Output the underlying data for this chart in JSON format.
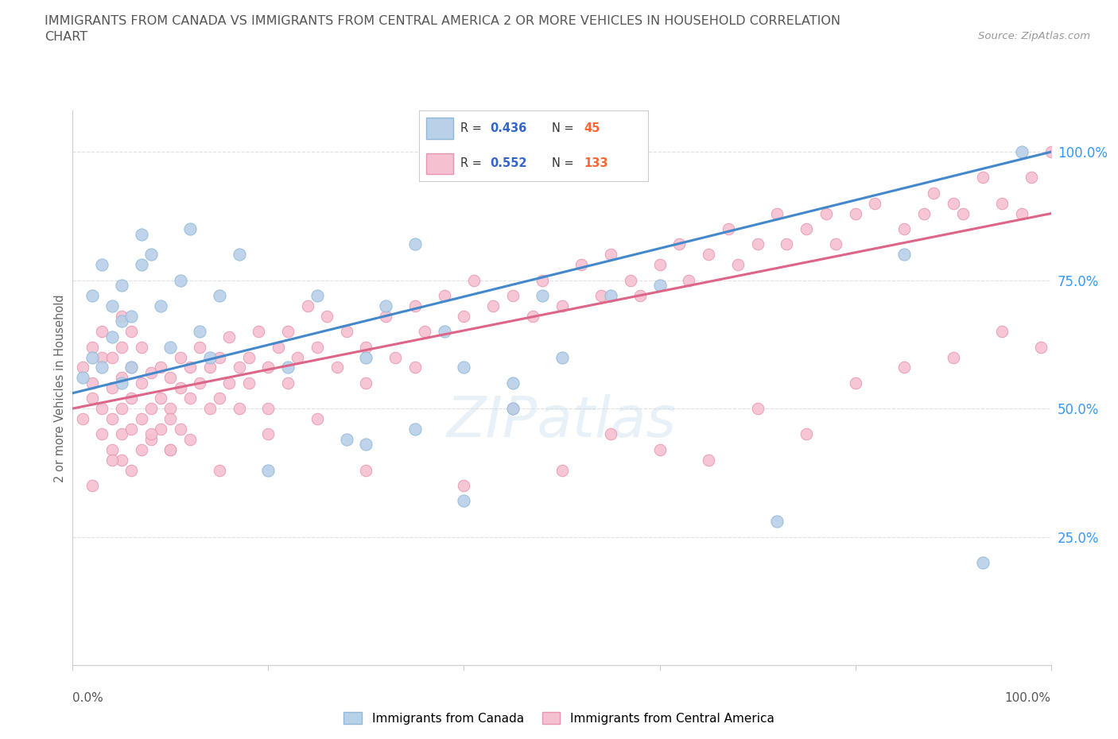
{
  "title_line1": "IMMIGRANTS FROM CANADA VS IMMIGRANTS FROM CENTRAL AMERICA 2 OR MORE VEHICLES IN HOUSEHOLD CORRELATION",
  "title_line2": "CHART",
  "source_text": "Source: ZipAtlas.com",
  "ylabel": "2 or more Vehicles in Household",
  "watermark": "ZIPatlas",
  "canada_R": 0.436,
  "canada_N": 45,
  "central_america_R": 0.552,
  "central_america_N": 133,
  "xlim": [
    0.0,
    1.0
  ],
  "ylim": [
    0.0,
    1.08
  ],
  "background_color": "#ffffff",
  "canada_color": "#b8d0e8",
  "canada_edge_color": "#90b8d8",
  "central_america_color": "#f5c0d0",
  "central_america_edge_color": "#e896b0",
  "canada_line_color": "#4488cc",
  "central_america_line_color": "#dd6688",
  "grid_color": "#e0e0e0",
  "title_color": "#555555",
  "legend_R_color": "#3366cc",
  "legend_N_color": "#ff6633",
  "right_tick_color": "#3399ff",
  "canada_scatter_x": [
    0.01,
    0.02,
    0.02,
    0.03,
    0.03,
    0.04,
    0.04,
    0.05,
    0.05,
    0.05,
    0.06,
    0.06,
    0.07,
    0.07,
    0.08,
    0.09,
    0.1,
    0.11,
    0.12,
    0.13,
    0.14,
    0.15,
    0.17,
    0.2,
    0.22,
    0.25,
    0.28,
    0.3,
    0.32,
    0.35,
    0.38,
    0.4,
    0.45,
    0.48,
    0.3,
    0.35,
    0.4,
    0.45,
    0.5,
    0.55,
    0.6,
    0.72,
    0.85,
    0.93,
    0.97
  ],
  "canada_scatter_y": [
    0.56,
    0.6,
    0.72,
    0.58,
    0.78,
    0.64,
    0.7,
    0.55,
    0.67,
    0.74,
    0.58,
    0.68,
    0.78,
    0.84,
    0.8,
    0.7,
    0.62,
    0.75,
    0.85,
    0.65,
    0.6,
    0.72,
    0.8,
    0.38,
    0.58,
    0.72,
    0.44,
    0.6,
    0.7,
    0.82,
    0.65,
    0.32,
    0.55,
    0.72,
    0.43,
    0.46,
    0.58,
    0.5,
    0.6,
    0.72,
    0.74,
    0.28,
    0.8,
    0.2,
    1.0
  ],
  "central_america_scatter_x": [
    0.01,
    0.01,
    0.02,
    0.02,
    0.02,
    0.03,
    0.03,
    0.03,
    0.03,
    0.04,
    0.04,
    0.04,
    0.04,
    0.05,
    0.05,
    0.05,
    0.05,
    0.05,
    0.06,
    0.06,
    0.06,
    0.06,
    0.07,
    0.07,
    0.07,
    0.07,
    0.08,
    0.08,
    0.08,
    0.09,
    0.09,
    0.09,
    0.1,
    0.1,
    0.1,
    0.11,
    0.11,
    0.11,
    0.12,
    0.12,
    0.12,
    0.13,
    0.13,
    0.14,
    0.14,
    0.15,
    0.15,
    0.16,
    0.16,
    0.17,
    0.17,
    0.18,
    0.18,
    0.19,
    0.2,
    0.2,
    0.21,
    0.22,
    0.22,
    0.23,
    0.24,
    0.25,
    0.26,
    0.27,
    0.28,
    0.3,
    0.3,
    0.32,
    0.33,
    0.35,
    0.36,
    0.38,
    0.4,
    0.41,
    0.43,
    0.45,
    0.47,
    0.48,
    0.5,
    0.52,
    0.54,
    0.55,
    0.57,
    0.58,
    0.6,
    0.62,
    0.63,
    0.65,
    0.67,
    0.68,
    0.7,
    0.72,
    0.73,
    0.75,
    0.77,
    0.78,
    0.8,
    0.82,
    0.85,
    0.87,
    0.88,
    0.9,
    0.91,
    0.93,
    0.95,
    0.97,
    0.98,
    1.0,
    0.05,
    0.1,
    0.15,
    0.2,
    0.25,
    0.3,
    0.35,
    0.4,
    0.45,
    0.5,
    0.55,
    0.6,
    0.65,
    0.7,
    0.75,
    0.8,
    0.85,
    0.9,
    0.95,
    0.99,
    0.02,
    0.04,
    0.06,
    0.08,
    0.1
  ],
  "central_america_scatter_y": [
    0.58,
    0.48,
    0.55,
    0.62,
    0.52,
    0.5,
    0.6,
    0.45,
    0.65,
    0.48,
    0.54,
    0.6,
    0.42,
    0.5,
    0.56,
    0.62,
    0.45,
    0.68,
    0.46,
    0.52,
    0.58,
    0.65,
    0.48,
    0.55,
    0.62,
    0.42,
    0.5,
    0.57,
    0.44,
    0.52,
    0.58,
    0.46,
    0.5,
    0.56,
    0.48,
    0.54,
    0.6,
    0.46,
    0.52,
    0.58,
    0.44,
    0.55,
    0.62,
    0.5,
    0.58,
    0.52,
    0.6,
    0.55,
    0.64,
    0.58,
    0.5,
    0.6,
    0.55,
    0.65,
    0.58,
    0.5,
    0.62,
    0.55,
    0.65,
    0.6,
    0.7,
    0.62,
    0.68,
    0.58,
    0.65,
    0.62,
    0.55,
    0.68,
    0.6,
    0.7,
    0.65,
    0.72,
    0.68,
    0.75,
    0.7,
    0.72,
    0.68,
    0.75,
    0.7,
    0.78,
    0.72,
    0.8,
    0.75,
    0.72,
    0.78,
    0.82,
    0.75,
    0.8,
    0.85,
    0.78,
    0.82,
    0.88,
    0.82,
    0.85,
    0.88,
    0.82,
    0.88,
    0.9,
    0.85,
    0.88,
    0.92,
    0.9,
    0.88,
    0.95,
    0.9,
    0.88,
    0.95,
    1.0,
    0.4,
    0.42,
    0.38,
    0.45,
    0.48,
    0.38,
    0.58,
    0.35,
    0.5,
    0.38,
    0.45,
    0.42,
    0.4,
    0.5,
    0.45,
    0.55,
    0.58,
    0.6,
    0.65,
    0.62,
    0.35,
    0.4,
    0.38,
    0.45,
    0.42
  ]
}
